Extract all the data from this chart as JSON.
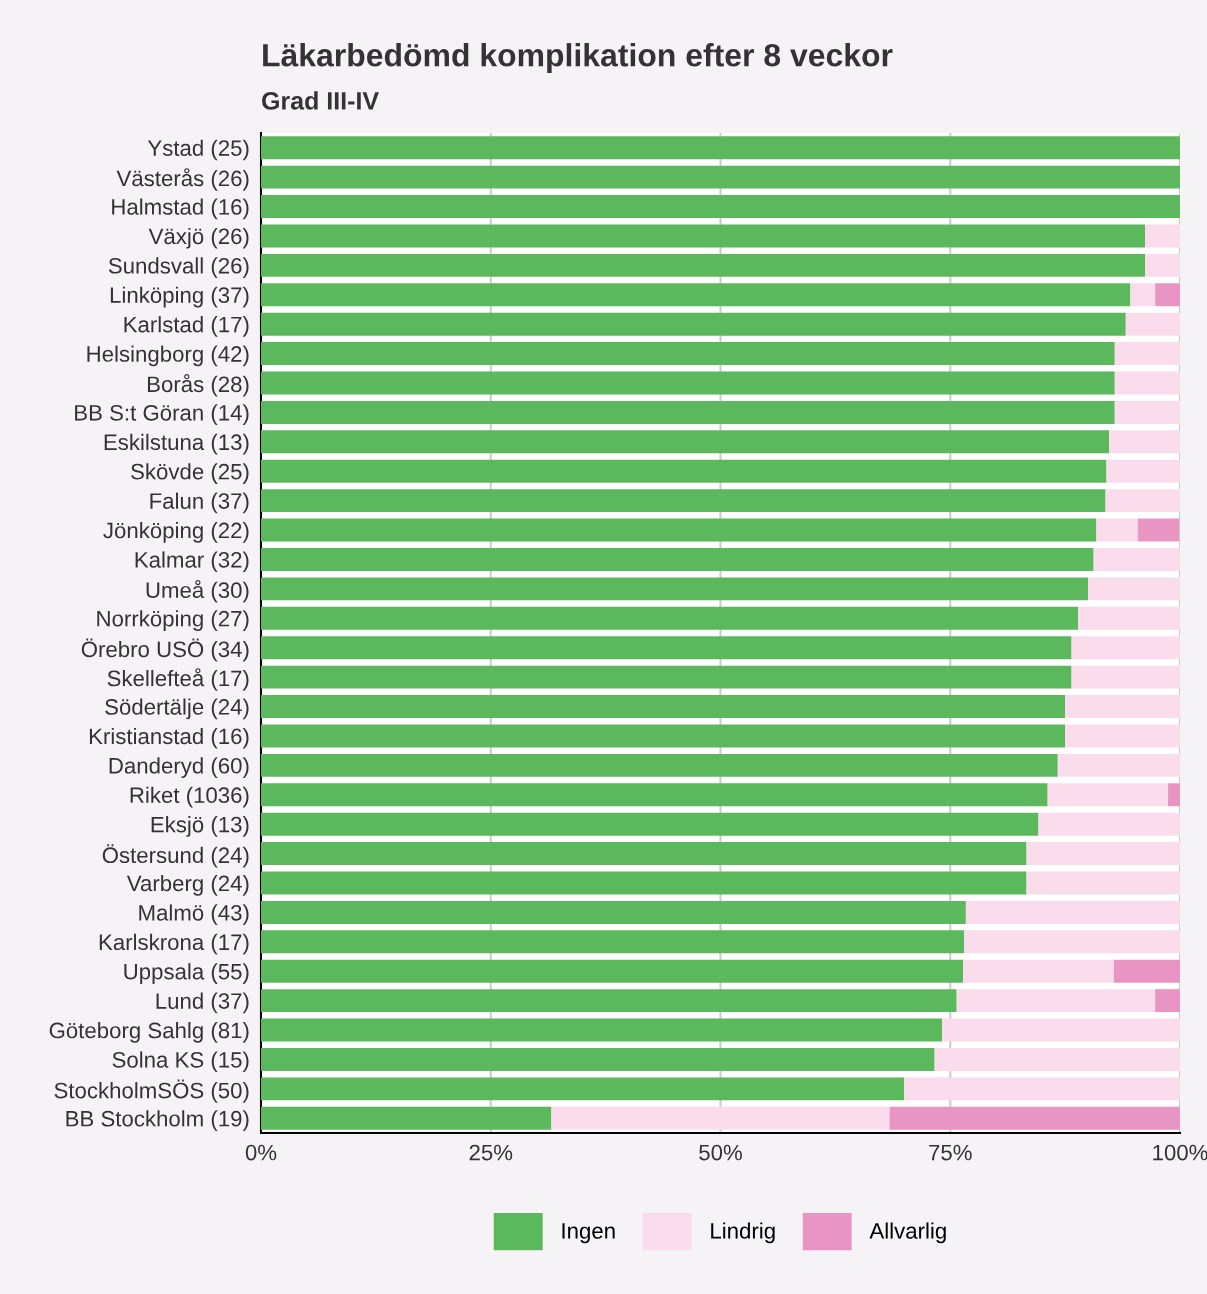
{
  "chart_data": {
    "type": "bar",
    "orientation": "horizontal",
    "stacked": true,
    "title": "Läkarbedömd komplikation efter 8 veckor",
    "subtitle": "Grad III-IV",
    "categories": [
      "Ystad (25)",
      "Västerås (26)",
      "Halmstad (16)",
      "Växjö (26)",
      "Sundsvall (26)",
      "Linköping (37)",
      "Karlstad (17)",
      "Helsingborg (42)",
      "Borås (28)",
      "BB S:t Göran (14)",
      "Eskilstuna (13)",
      "Skövde (25)",
      "Falun (37)",
      "Jönköping (22)",
      "Kalmar (32)",
      "Umeå (30)",
      "Norrköping (27)",
      "Örebro USÖ (34)",
      "Skellefteå (17)",
      "Södertälje (24)",
      "Kristianstad (16)",
      "Danderyd (60)",
      "Riket (1036)",
      "Eksjö (13)",
      "Östersund (24)",
      "Varberg (24)",
      "Malmö (43)",
      "Karlskrona (17)",
      "Uppsala (55)",
      "Lund (37)",
      "Göteborg Sahlg (81)",
      "Solna KS (15)",
      "StockholmSÖS (50)",
      "BB Stockholm (19)"
    ],
    "series": [
      {
        "name": "Ingen",
        "color": "#5cb85c",
        "values": [
          100,
          100,
          100,
          96.2,
          96.2,
          94.6,
          94.1,
          92.9,
          92.9,
          92.9,
          92.3,
          92.0,
          91.9,
          90.9,
          90.6,
          90.0,
          88.9,
          88.2,
          88.2,
          87.5,
          87.5,
          86.7,
          85.6,
          84.6,
          83.3,
          83.3,
          76.7,
          76.5,
          76.4,
          75.7,
          74.1,
          73.3,
          70.0,
          31.6
        ]
      },
      {
        "name": "Lindrig",
        "color": "#fadcec",
        "values": [
          0,
          0,
          0,
          3.8,
          3.8,
          2.7,
          5.9,
          7.1,
          7.1,
          7.1,
          7.7,
          8.0,
          8.1,
          4.5,
          9.4,
          10.0,
          11.1,
          11.8,
          11.8,
          12.5,
          12.5,
          13.3,
          13.1,
          15.4,
          16.7,
          16.7,
          23.3,
          23.5,
          16.4,
          21.6,
          25.9,
          26.7,
          30.0,
          36.8
        ]
      },
      {
        "name": "Allvarlig",
        "color": "#e895c4",
        "values": [
          0,
          0,
          0,
          0,
          0,
          2.7,
          0,
          0,
          0,
          0,
          0,
          0,
          0,
          4.5,
          0,
          0,
          0,
          0,
          0,
          0,
          0,
          0,
          1.3,
          0,
          0,
          0,
          0,
          0,
          7.3,
          2.7,
          0,
          0,
          0,
          31.6
        ]
      }
    ],
    "xlim": [
      0,
      100
    ],
    "xticks": [
      {
        "value": 0,
        "label": "0%"
      },
      {
        "value": 25,
        "label": "25%"
      },
      {
        "value": 50,
        "label": "50%"
      },
      {
        "value": 75,
        "label": "75%"
      },
      {
        "value": 100,
        "label": "100%"
      }
    ],
    "grid": "x",
    "legend": "bottom"
  }
}
